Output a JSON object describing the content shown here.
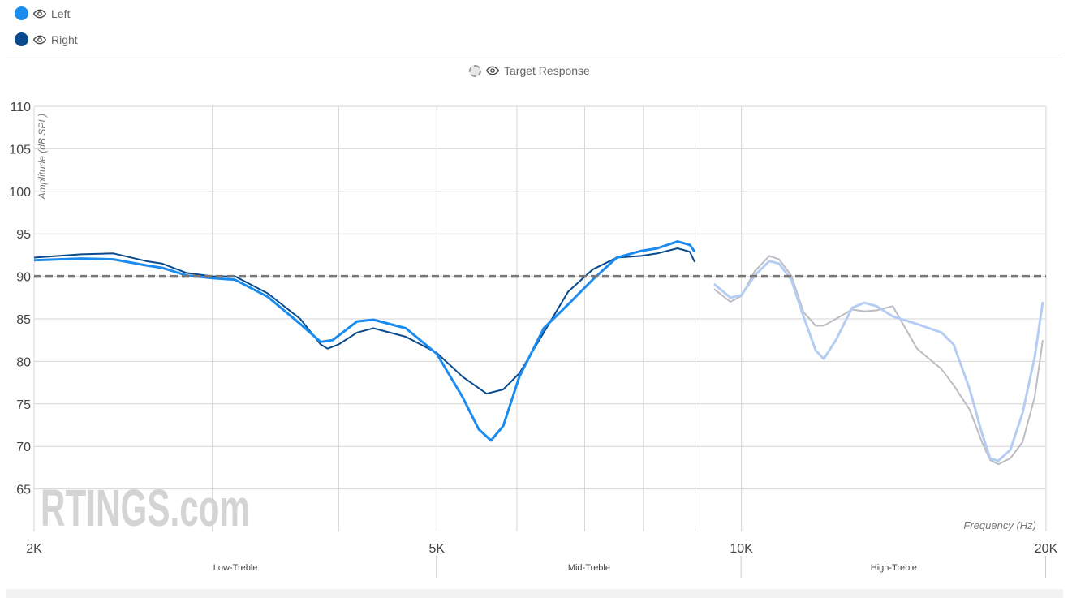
{
  "legend": {
    "items": [
      {
        "label": "Left",
        "color": "#1a8cf0"
      },
      {
        "label": "Right",
        "color": "#084a8c"
      }
    ],
    "target_label": "Target Response"
  },
  "watermark": "RTINGS.com",
  "chart_data": {
    "type": "line",
    "xlabel": "Frequency (Hz)",
    "ylabel": "Amplitude (dB SPL)",
    "xscale": "log",
    "xlim": [
      2000,
      20000
    ],
    "ylim": [
      60,
      110
    ],
    "yticks": [
      65,
      70,
      75,
      80,
      85,
      90,
      95,
      100,
      105,
      110
    ],
    "xticks": [
      {
        "value": 2000,
        "label": "2K"
      },
      {
        "value": 5000,
        "label": "5K"
      },
      {
        "value": 10000,
        "label": "10K"
      },
      {
        "value": 20000,
        "label": "20K"
      }
    ],
    "x_gridlines": [
      3000,
      4000,
      5000,
      6000,
      7000,
      8000,
      9000,
      10000,
      20000
    ],
    "grid": true,
    "faded_above_hz": 9000,
    "target": {
      "name": "Target Response",
      "value": 90,
      "color": "#777777"
    },
    "regions": [
      {
        "label": "Low-Treble",
        "from": 2000,
        "to": 5000
      },
      {
        "label": "Mid-Treble",
        "from": 5000,
        "to": 10000
      },
      {
        "label": "High-Treble",
        "from": 10000,
        "to": 20000
      }
    ],
    "series": [
      {
        "name": "Left",
        "color": "#1a8cf0",
        "faded_color": "#b5cdf2",
        "x": [
          2000,
          2226,
          2396,
          2580,
          2678,
          2830,
          3002,
          3160,
          3404,
          3665,
          3838,
          3946,
          4171,
          4328,
          4659,
          5000,
          5302,
          5502,
          5657,
          5816,
          6034,
          6378,
          6742,
          7127,
          7530,
          7960,
          8258,
          8648,
          8892,
          8990,
          9398,
          9752,
          10000,
          10308,
          10656,
          10894,
          11202,
          11516,
          11840,
          12060,
          12398,
          12864,
          13226,
          13598,
          14110,
          14914,
          15764,
          16206,
          16814,
          17290,
          17612,
          17942,
          18440,
          18956,
          19490,
          19852
        ],
        "y": [
          91.9,
          92.1,
          92.0,
          91.3,
          91.0,
          90.1,
          89.8,
          89.6,
          87.6,
          84.4,
          82.3,
          82.5,
          84.7,
          84.9,
          83.9,
          80.9,
          75.8,
          72.0,
          70.7,
          72.4,
          78.2,
          83.9,
          86.7,
          89.6,
          92.2,
          93.0,
          93.3,
          94.1,
          93.7,
          92.9,
          89.1,
          87.5,
          87.8,
          90.1,
          91.8,
          91.5,
          89.6,
          85.3,
          81.3,
          80.3,
          82.5,
          86.3,
          86.9,
          86.5,
          85.3,
          84.4,
          83.4,
          82.0,
          76.7,
          71.5,
          68.6,
          68.3,
          69.6,
          73.9,
          80.5,
          87.0
        ]
      },
      {
        "name": "Right",
        "color": "#084a8c",
        "faded_color": "#bcbcc4",
        "x": [
          2000,
          2226,
          2396,
          2580,
          2678,
          2830,
          3002,
          3160,
          3404,
          3665,
          3838,
          3900,
          4000,
          4171,
          4328,
          4659,
          5000,
          5302,
          5600,
          5816,
          6034,
          6378,
          6742,
          7127,
          7530,
          7960,
          8258,
          8648,
          8892,
          8990,
          9398,
          9752,
          10000,
          10308,
          10656,
          10894,
          11202,
          11516,
          11840,
          12060,
          12398,
          12864,
          13226,
          13598,
          14110,
          14914,
          15764,
          16206,
          16814,
          17290,
          17612,
          17942,
          18440,
          18956,
          19490,
          19852
        ],
        "y": [
          92.2,
          92.6,
          92.7,
          91.8,
          91.5,
          90.4,
          90.0,
          90.0,
          88.0,
          85.0,
          82.0,
          81.5,
          82.0,
          83.4,
          83.9,
          82.9,
          81.0,
          78.2,
          76.2,
          76.7,
          78.6,
          83.4,
          88.2,
          90.8,
          92.2,
          92.4,
          92.7,
          93.3,
          92.9,
          91.7,
          88.5,
          87.0,
          87.7,
          90.6,
          92.4,
          92.0,
          90.1,
          85.8,
          84.2,
          84.2,
          85.0,
          86.1,
          85.9,
          86.0,
          86.5,
          81.5,
          79.1,
          77.2,
          74.3,
          70.5,
          68.4,
          67.9,
          68.6,
          70.5,
          75.8,
          82.5
        ]
      }
    ]
  }
}
